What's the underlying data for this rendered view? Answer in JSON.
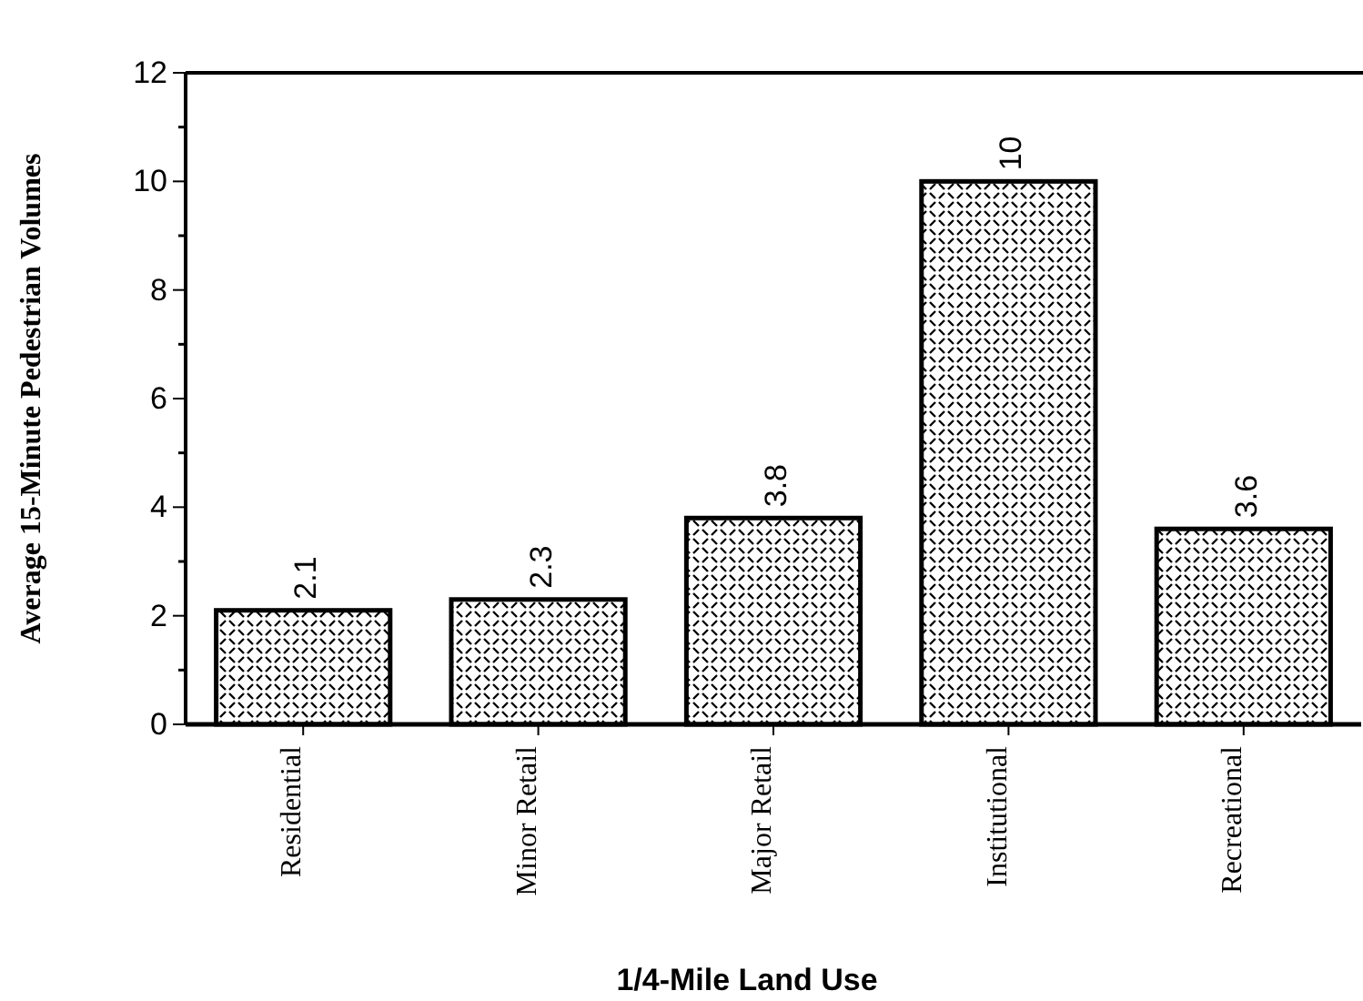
{
  "chart_data": {
    "type": "bar",
    "xlabel": "1/4-Mile Land Use",
    "ylabel": "Average 15-Minute Pedestrian Volumes",
    "categories": [
      "Residential",
      "Minor Retail",
      "Major Retail",
      "Institutional",
      "Recreational"
    ],
    "values": [
      2.1,
      2.3,
      3.8,
      10,
      3.6
    ],
    "color": "#000000",
    "ylim": [
      0,
      12
    ],
    "yticks": [
      0,
      2,
      4,
      6,
      8,
      10,
      12
    ],
    "grid": false,
    "data_labels": true
  }
}
